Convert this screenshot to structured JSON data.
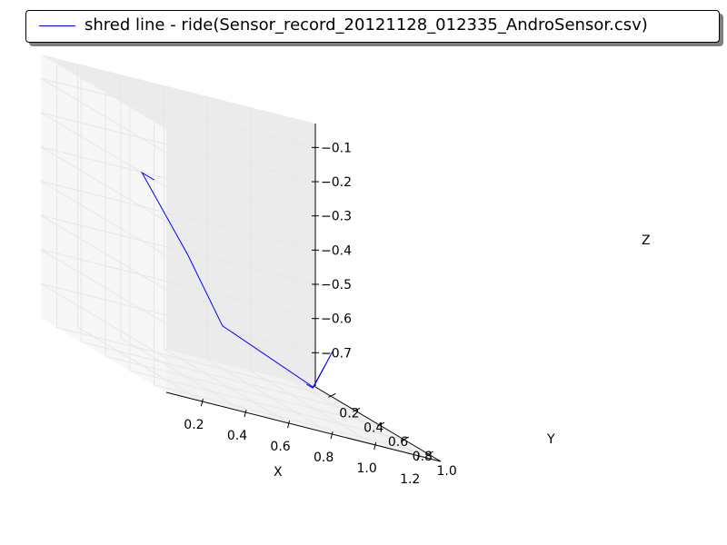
{
  "chart_data": {
    "type": "line",
    "projection": "3d",
    "series": [
      {
        "name": "shred line - ride(Sensor_record_20121128_012335_AndroSensor.csv)",
        "color": "#0000ff",
        "x": [
          0.03,
          0.03,
          0.49,
          0.78,
          1.28,
          1.28,
          1.22,
          1.22
        ],
        "y": [
          1.0,
          0.9,
          0.46,
          0.23,
          0.09,
          0.25,
          0.19,
          0.14
        ],
        "z": [
          -0.2,
          -0.2,
          -0.46,
          -0.67,
          -0.8,
          -0.66,
          -0.79,
          -0.79
        ]
      }
    ],
    "xlabel": "X",
    "ylabel": "Y",
    "zlabel": "Z",
    "xticks": [
      "0.2",
      "0.4",
      "0.6",
      "0.8",
      "1.0",
      "1.2"
    ],
    "yticks": [
      "0.2",
      "0.4",
      "0.6",
      "0.8",
      "1.0"
    ],
    "zticks": [
      "−0.7",
      "−0.6",
      "−0.5",
      "−0.4",
      "−0.3",
      "−0.2",
      "−0.1"
    ],
    "xlim": [
      0.03,
      1.3
    ],
    "ylim": [
      0.07,
      1.1
    ],
    "zlim": [
      -0.8,
      -0.03
    ],
    "grid": true,
    "legend_position": "top"
  }
}
